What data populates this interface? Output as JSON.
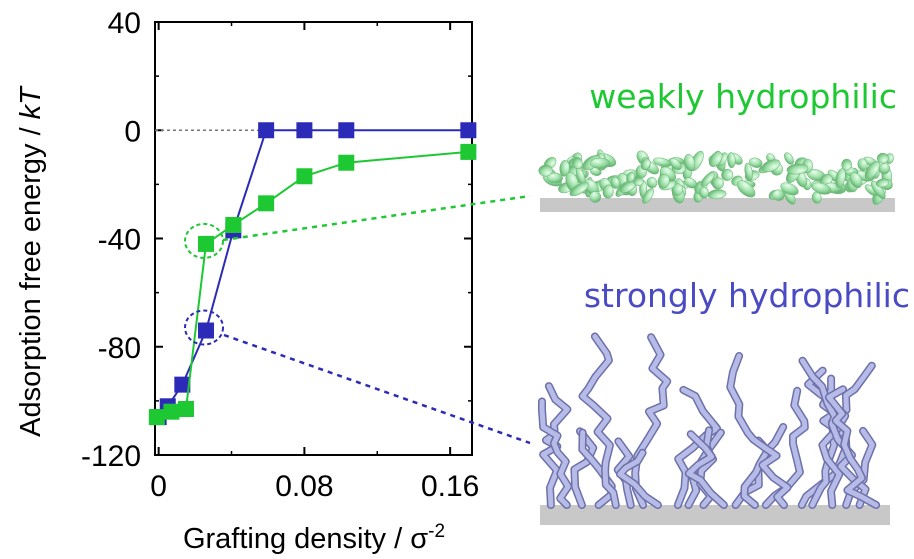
{
  "chart_data": {
    "type": "line",
    "xlabel": "Grafting density / σ",
    "xlabel_sup": "-2",
    "ylabel_main": "Adsorption free energy / ",
    "ylabel_unit": "kT",
    "xlim": [
      -0.002,
      0.172
    ],
    "ylim": [
      -120,
      40
    ],
    "xticks": [
      0,
      0.08,
      0.16
    ],
    "xtick_labels": [
      "0",
      "0.08",
      "0.16"
    ],
    "yticks": [
      40,
      0,
      -40,
      -80,
      -120
    ],
    "ytick_labels": [
      "40",
      "0",
      "-40",
      "-80",
      "-120"
    ],
    "reference_line": 0,
    "series": [
      {
        "color": "#2b2bb8",
        "x": [
          0.0,
          0.005,
          0.013,
          0.026,
          0.041,
          0.059,
          0.08,
          0.103,
          0.17
        ],
        "y": [
          -106,
          -102,
          -94,
          -74,
          -37,
          0,
          0,
          0,
          0
        ]
      },
      {
        "color": "#1ec832",
        "x": [
          -0.001,
          0.007,
          0.015,
          0.026,
          0.041,
          0.059,
          0.08,
          0.103,
          0.17
        ],
        "y": [
          -106,
          -104,
          -103,
          -42,
          -35,
          -27,
          -17,
          -12,
          -8
        ]
      }
    ],
    "highlights": [
      {
        "x": 0.026,
        "y": -42,
        "color": "#1ec832"
      },
      {
        "x": 0.026,
        "y": -74,
        "color": "#2b2bb8"
      }
    ]
  },
  "panels": {
    "weak": {
      "label": "weakly hydrophilic",
      "color": "#1ec832"
    },
    "strong": {
      "label": "strongly hydrophilic",
      "color": "#4a4ac4"
    }
  }
}
